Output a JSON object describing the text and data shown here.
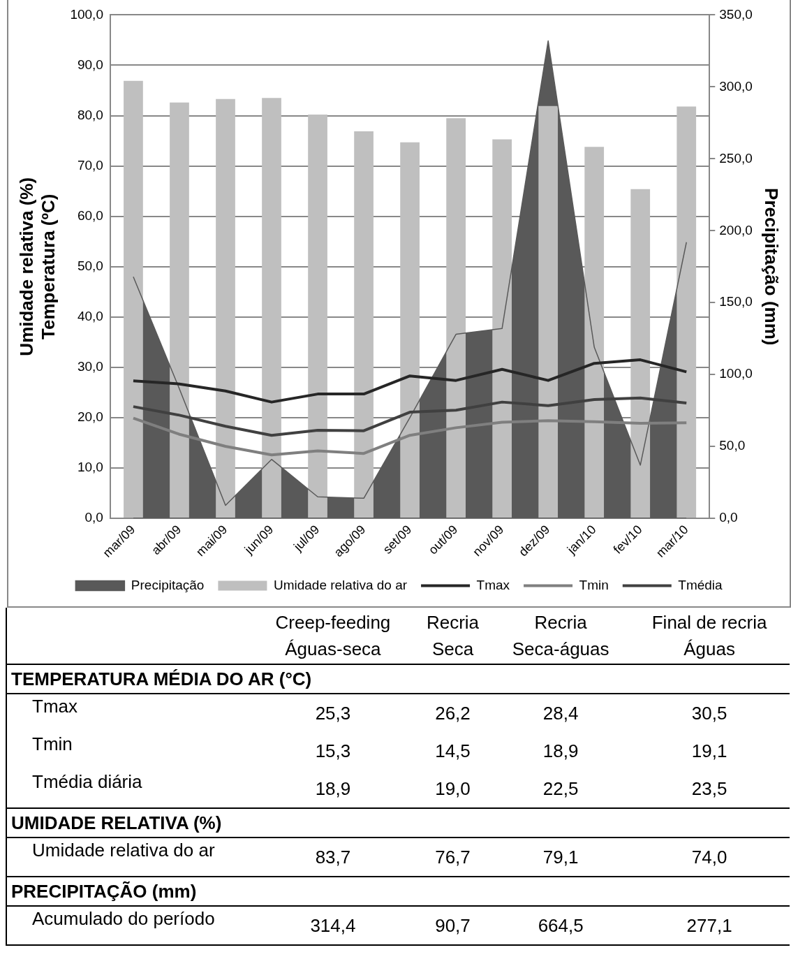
{
  "chart_data": [
    {
      "type": "bar",
      "ylabel": "Umidade relativa (%)\nTemperatura (ºC)",
      "y2label": "Precipitação (mm)",
      "categories": [
        "mar/09",
        "abr/09",
        "mai/09",
        "jun/09",
        "jul/09",
        "ago/09",
        "set/09",
        "out/09",
        "nov/09",
        "dez/09",
        "jan/10",
        "fev/10",
        "mar/10"
      ],
      "series": [
        {
          "name": "Precipitação",
          "type": "area",
          "axis": "y2",
          "color": "#595959",
          "values": [
            168,
            90,
            9,
            41,
            15,
            14,
            70,
            128,
            132,
            332,
            119,
            37,
            192
          ]
        },
        {
          "name": "Umidade relativa do ar",
          "type": "bar",
          "color": "#bfbfbf",
          "values": [
            86.9,
            82.6,
            83.3,
            83.5,
            80.2,
            76.9,
            74.7,
            79.5,
            75.3,
            81.9,
            73.8,
            65.4,
            81.8
          ]
        },
        {
          "name": "Tmax",
          "type": "line",
          "color": "#262626",
          "values": [
            27.3,
            26.7,
            25.3,
            23.1,
            24.7,
            24.7,
            28.3,
            27.4,
            29.6,
            27.4,
            30.8,
            31.5,
            29.1
          ]
        },
        {
          "name": "Tmin",
          "type": "line",
          "color": "#7f7f7f",
          "values": [
            19.9,
            16.7,
            14.3,
            12.6,
            13.4,
            12.9,
            16.5,
            18.0,
            19.1,
            19.4,
            19.2,
            18.9,
            19.0
          ]
        },
        {
          "name": "Tmédia",
          "type": "line",
          "color": "#404040",
          "values": [
            22.2,
            20.5,
            18.3,
            16.5,
            17.5,
            17.4,
            21.1,
            21.5,
            23.1,
            22.4,
            23.6,
            23.9,
            22.9
          ]
        }
      ],
      "ylim": [
        0,
        100
      ],
      "yticks": [
        {
          "value": 0,
          "label": "0,0"
        },
        {
          "value": 10,
          "label": "10,0"
        },
        {
          "value": 20,
          "label": "20,0"
        },
        {
          "value": 30,
          "label": "30,0"
        },
        {
          "value": 40,
          "label": "40,0"
        },
        {
          "value": 50,
          "label": "50,0"
        },
        {
          "value": 60,
          "label": "60,0"
        },
        {
          "value": 70,
          "label": "70,0"
        },
        {
          "value": 80,
          "label": "80,0"
        },
        {
          "value": 90,
          "label": "90,0"
        },
        {
          "value": 100,
          "label": "100,0"
        }
      ],
      "y2lim": [
        0,
        350
      ],
      "y2ticks": [
        {
          "value": 0,
          "label": "0,0"
        },
        {
          "value": 50,
          "label": "50,0"
        },
        {
          "value": 100,
          "label": "100,0"
        },
        {
          "value": 150,
          "label": "150,0"
        },
        {
          "value": 200,
          "label": "200,0"
        },
        {
          "value": 250,
          "label": "250,0"
        },
        {
          "value": 300,
          "label": "300,0"
        },
        {
          "value": 350,
          "label": "350,0"
        }
      ],
      "grid": "y",
      "legend": "bottom",
      "marker": "none"
    },
    {
      "type": "other",
      "categories": [
        null,
        "Creep-feeding\nÁguas-seca",
        "Recria\nSeca",
        "Recria\nSeca-águas",
        "Final de recria\nÁguas"
      ],
      "y_categories": [
        "TEMPERATURA MÉDIA DO AR (°C)",
        "Tmax",
        "Tmin",
        "Tmédia diária",
        "UMIDADE RELATIVA (%)",
        "Umidade relativa do ar",
        "PRECIPITAÇÃO (mm)",
        "Acumulado do período"
      ],
      "cell_labels": [
        null,
        [
          "25,3",
          "26,2",
          "28,4",
          "30,5"
        ],
        [
          "15,3",
          "14,5",
          "18,9",
          "19,1"
        ],
        [
          "18,9",
          "19,0",
          "22,5",
          "23,5"
        ],
        null,
        [
          "83,7",
          "76,7",
          "79,1",
          "74,0"
        ],
        null,
        [
          "314,4",
          "90,7",
          "664,5",
          "277,1"
        ]
      ]
    }
  ]
}
